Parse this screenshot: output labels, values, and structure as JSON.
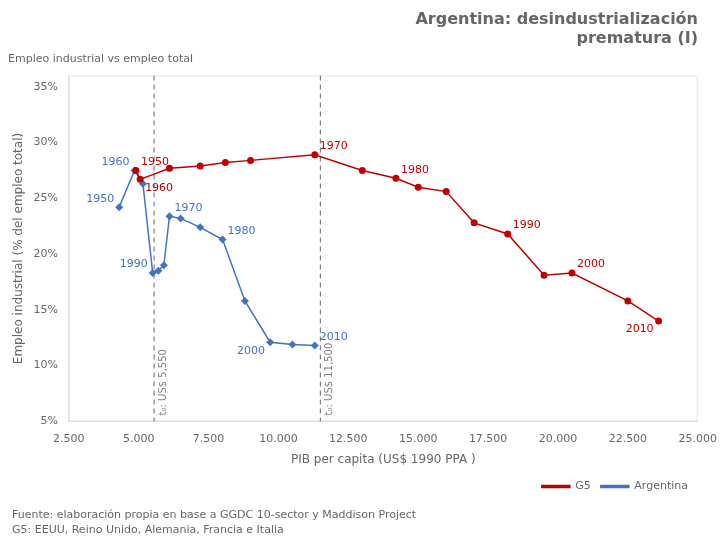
{
  "chart_data": {
    "type": "line",
    "title": "Argentina: desindustrialización\nprematura (I)",
    "subtitle": "Empleo industrial vs empleo total",
    "xlabel": "PIB per capita (US$ 1990 PPA )",
    "ylabel": "Empleo industrial (% del empleo total)",
    "footnotes": [
      "Fuente: elaboración propia en base a GGDC 10-sector y Maddison Project",
      "G5: EEUU, Reino Unido, Alemania, Francia e Italia"
    ],
    "series": [
      {
        "name": "G5",
        "color": "#c00000",
        "marker": "circle",
        "line_style": "solid",
        "x": [
          4900,
          5050,
          6100,
          7200,
          8100,
          9000,
          11300,
          13000,
          14200,
          15000,
          16000,
          17000,
          18200,
          19500,
          20500,
          22500,
          23600
        ],
        "values": [
          0.275,
          0.267,
          0.277,
          0.279,
          0.282,
          0.284,
          0.289,
          0.275,
          0.268,
          0.26,
          0.256,
          0.228,
          0.218,
          0.181,
          0.183,
          0.158,
          0.14
        ]
      },
      {
        "name": "Argentina",
        "color": "#4472c4",
        "marker": "diamond",
        "line_style": "solid",
        "x": [
          4300,
          4850,
          5150,
          5500,
          5700,
          5900,
          6100,
          6500,
          7200,
          8000,
          8800,
          9700,
          10500,
          11300
        ],
        "values": [
          0.242,
          0.275,
          0.263,
          0.183,
          0.185,
          0.19,
          0.234,
          0.232,
          0.224,
          0.213,
          0.158,
          0.121,
          0.119,
          0.118
        ]
      }
    ],
    "annotations": [
      {
        "text": "1950",
        "series": "G5",
        "x": 4900,
        "y": 0.275
      },
      {
        "text": "1960",
        "series": "G5",
        "x": 5050,
        "y": 0.267
      },
      {
        "text": "1970",
        "series": "G5",
        "x": 11300,
        "y": 0.289
      },
      {
        "text": "1980",
        "series": "G5",
        "x": 14200,
        "y": 0.268
      },
      {
        "text": "1990",
        "series": "G5",
        "x": 18200,
        "y": 0.218
      },
      {
        "text": "2000",
        "series": "G5",
        "x": 20500,
        "y": 0.183
      },
      {
        "text": "2010",
        "series": "G5",
        "x": 23600,
        "y": 0.14
      },
      {
        "text": "1950",
        "series": "Argentina",
        "x": 4300,
        "y": 0.242
      },
      {
        "text": "1960",
        "series": "Argentina",
        "x": 4850,
        "y": 0.275
      },
      {
        "text": "1990",
        "series": "Argentina",
        "x": 5500,
        "y": 0.183
      },
      {
        "text": "1970",
        "series": "Argentina",
        "x": 6100,
        "y": 0.234
      },
      {
        "text": "1980",
        "series": "Argentina",
        "x": 8000,
        "y": 0.213
      },
      {
        "text": "2000",
        "series": "Argentina",
        "x": 9700,
        "y": 0.121
      },
      {
        "text": "2010",
        "series": "Argentina",
        "x": 11300,
        "y": 0.118
      }
    ],
    "vlines": [
      {
        "x": 5550,
        "label": "t₀: US$ 5,550"
      },
      {
        "x": 11500,
        "label": "t₀: US$ 11,500"
      }
    ],
    "xlim": [
      2500,
      25000
    ],
    "ylim": [
      0.05,
      0.36
    ],
    "xticks": [
      {
        "value": 2500,
        "label": "2.500"
      },
      {
        "value": 5000,
        "label": "5.000"
      },
      {
        "value": 7500,
        "label": "7.500"
      },
      {
        "value": 10000,
        "label": "10.000"
      },
      {
        "value": 12500,
        "label": "12.500"
      },
      {
        "value": 15000,
        "label": "15.000"
      },
      {
        "value": 17500,
        "label": "17.500"
      },
      {
        "value": 20000,
        "label": "20.000"
      },
      {
        "value": 22500,
        "label": "22.500"
      },
      {
        "value": 25000,
        "label": "25.000"
      }
    ],
    "yticks": [
      {
        "value": 0.05,
        "label": "5%"
      },
      {
        "value": 0.1,
        "label": "10%"
      },
      {
        "value": 0.15,
        "label": "15%"
      },
      {
        "value": 0.2,
        "label": "20%"
      },
      {
        "value": 0.25,
        "label": "25%"
      },
      {
        "value": 0.3,
        "label": "30%"
      },
      {
        "value": 0.35,
        "label": "35%"
      }
    ],
    "grid": false,
    "legend": "lower right"
  }
}
